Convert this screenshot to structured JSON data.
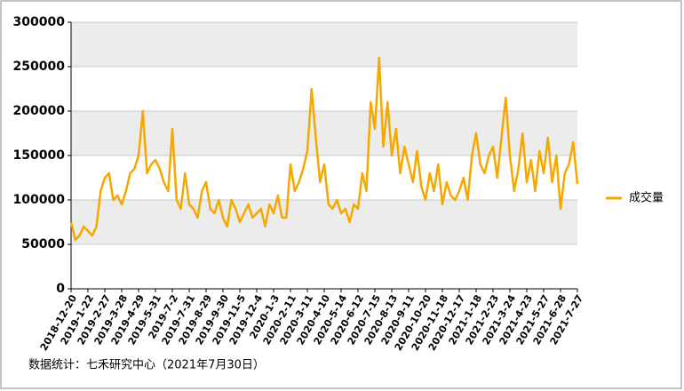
{
  "chart_data": {
    "type": "line",
    "categories": [
      "2018-12-20",
      null,
      null,
      null,
      "2019-1-22",
      null,
      null,
      null,
      "2019-2-27",
      null,
      null,
      null,
      "2019-3-28",
      null,
      null,
      null,
      "2019-4-29",
      null,
      null,
      null,
      "2019-5-31",
      null,
      null,
      null,
      "2019-7-2",
      null,
      null,
      null,
      "2019-7-31",
      null,
      null,
      null,
      "2019-8-29",
      null,
      null,
      null,
      "2019-9-30",
      null,
      null,
      null,
      "2019-11-5",
      null,
      null,
      null,
      "2019-12-4",
      null,
      null,
      null,
      "2020-1-3",
      null,
      null,
      null,
      "2020-2-11",
      null,
      null,
      null,
      "2020-3-11",
      null,
      null,
      null,
      "2020-4-10",
      null,
      null,
      null,
      "2020-5-14",
      null,
      null,
      null,
      "2020-6-12",
      null,
      null,
      null,
      "2020-7-15",
      null,
      null,
      null,
      "2020-8-13",
      null,
      null,
      null,
      "2020-9-11",
      null,
      null,
      null,
      "2020-10-20",
      null,
      null,
      null,
      "2020-11-18",
      null,
      null,
      null,
      "2020-12-17",
      null,
      null,
      null,
      "2021-1-18",
      null,
      null,
      null,
      "2021-2-23",
      null,
      null,
      null,
      "2021-3-24",
      null,
      null,
      null,
      "2021-4-23",
      null,
      null,
      null,
      "2021-5-27",
      null,
      null,
      null,
      "2021-6-28",
      null,
      null,
      null,
      "2021-7-27"
    ],
    "series": [
      {
        "name": "成交量",
        "color": "#f5a800",
        "values": [
          75000,
          55000,
          60000,
          70000,
          65000,
          60000,
          70000,
          110000,
          125000,
          130000,
          100000,
          105000,
          95000,
          110000,
          130000,
          135000,
          150000,
          200000,
          130000,
          140000,
          145000,
          135000,
          120000,
          110000,
          180000,
          100000,
          90000,
          130000,
          95000,
          90000,
          80000,
          110000,
          120000,
          90000,
          85000,
          100000,
          80000,
          70000,
          100000,
          90000,
          75000,
          85000,
          95000,
          80000,
          85000,
          90000,
          70000,
          95000,
          85000,
          105000,
          80000,
          80000,
          140000,
          110000,
          120000,
          135000,
          155000,
          225000,
          170000,
          120000,
          140000,
          95000,
          90000,
          100000,
          85000,
          90000,
          75000,
          95000,
          90000,
          130000,
          110000,
          210000,
          180000,
          260000,
          160000,
          210000,
          150000,
          180000,
          130000,
          160000,
          140000,
          120000,
          155000,
          115000,
          100000,
          130000,
          110000,
          140000,
          95000,
          120000,
          105000,
          100000,
          110000,
          125000,
          100000,
          150000,
          175000,
          140000,
          130000,
          150000,
          160000,
          125000,
          170000,
          215000,
          150000,
          110000,
          135000,
          175000,
          120000,
          145000,
          110000,
          155000,
          130000,
          170000,
          120000,
          150000,
          90000,
          130000,
          140000,
          165000,
          118000
        ]
      }
    ],
    "ylim": [
      0,
      300000
    ],
    "yticks": [
      0,
      50000,
      100000,
      150000,
      200000,
      250000,
      300000
    ],
    "legend": "right",
    "source": "数据统计：七禾研究中心（2021年7月30日）"
  }
}
